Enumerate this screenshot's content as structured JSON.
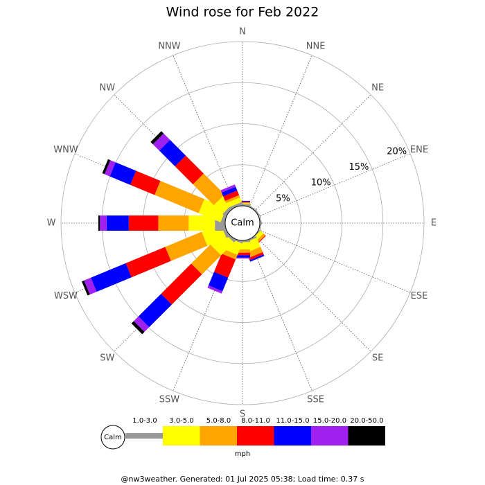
{
  "chart_data": {
    "type": "windrose",
    "title": "Wind rose for Feb 2022",
    "categories": [
      "N",
      "NNE",
      "NE",
      "ENE",
      "E",
      "ESE",
      "SE",
      "SSE",
      "S",
      "SSW",
      "SW",
      "WSW",
      "W",
      "WNW",
      "NW",
      "NNW"
    ],
    "calm_label": "Calm",
    "units": "mph",
    "ylim": [
      0,
      20
    ],
    "yticks": [
      {
        "value": 5,
        "label": "5%"
      },
      {
        "value": 10,
        "label": "10%"
      },
      {
        "value": 15,
        "label": "15%"
      },
      {
        "value": 20,
        "label": "20%"
      }
    ],
    "series": [
      {
        "name": "1.0-3.0",
        "color": "#999999",
        "values": [
          0.2,
          0.1,
          0.1,
          0.1,
          0.1,
          0.1,
          0.1,
          0.2,
          0.2,
          0.2,
          0.3,
          0.4,
          1.25,
          0.4,
          0.4,
          0.3
        ]
      },
      {
        "name": "3.0-5.0",
        "color": "#ffff00",
        "values": [
          0.1,
          0,
          0,
          0,
          0,
          0,
          0.5,
          1.2,
          0.9,
          1.5,
          2.2,
          2.5,
          3.2,
          2.9,
          1.5,
          0.6
        ]
      },
      {
        "name": "5.0-8.0",
        "color": "#ffa500",
        "values": [
          0.1,
          0,
          0,
          0,
          0,
          0,
          0.3,
          0.7,
          0.4,
          0.6,
          3.3,
          4.8,
          3.7,
          5.8,
          3.6,
          0.3
        ]
      },
      {
        "name": "8.0-11.0",
        "color": "#ff0000",
        "values": [
          0.1,
          0,
          0,
          0,
          0,
          0,
          0.1,
          0.3,
          0.3,
          2.4,
          5.2,
          5.2,
          3.6,
          3.2,
          3.1,
          0.6
        ]
      },
      {
        "name": "11.0-15.0",
        "color": "#0000ff",
        "values": [
          0.1,
          0,
          0,
          0,
          0,
          0,
          0,
          0.2,
          0.3,
          1.8,
          3.9,
          4.6,
          2.7,
          2.7,
          2.7,
          0.5
        ]
      },
      {
        "name": "15.0-20.0",
        "color": "#a020f0",
        "values": [
          0,
          0,
          0,
          0,
          0,
          0,
          0,
          0,
          0.1,
          0.3,
          0.8,
          0.9,
          0.8,
          0.7,
          1.1,
          0.3
        ]
      },
      {
        "name": "20.0-50.0",
        "color": "#000000",
        "values": [
          0,
          0,
          0,
          0,
          0,
          0,
          0,
          0,
          0,
          0,
          0.4,
          0.3,
          0.2,
          0.3,
          0.4,
          0
        ]
      }
    ]
  },
  "footer": "@nw3weather. Generated: 01 Jul 2025 05:38; Load time: 0.37 s"
}
